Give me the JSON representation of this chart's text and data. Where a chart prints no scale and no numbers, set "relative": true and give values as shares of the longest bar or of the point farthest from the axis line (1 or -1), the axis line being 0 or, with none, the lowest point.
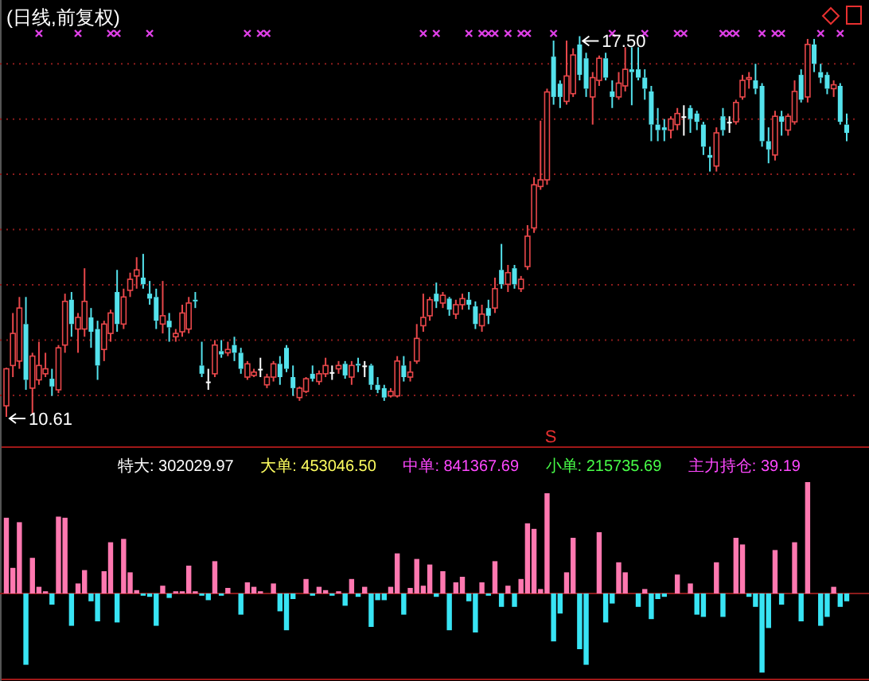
{
  "chart_data": [
    {
      "type": "candlestick",
      "title": "(日线,前复权)",
      "grid": "y",
      "categories": [
        null,
        null,
        null,
        null,
        null,
        null,
        null,
        null,
        null,
        null,
        null,
        null,
        null,
        null,
        null,
        null,
        null,
        null,
        null,
        null,
        null,
        null,
        null,
        null,
        null,
        null,
        null,
        null,
        null,
        null,
        null,
        null,
        null,
        null,
        null,
        null,
        null,
        null,
        null,
        null,
        null,
        null,
        null,
        null,
        null,
        null,
        null,
        null,
        null,
        null,
        null,
        null,
        null,
        null,
        null,
        null,
        null,
        null,
        null,
        null,
        null,
        null,
        null,
        null,
        null,
        null,
        null,
        null,
        null,
        null,
        null,
        null,
        null,
        null,
        null,
        null,
        null,
        null,
        null,
        null,
        null,
        null,
        null,
        null,
        null,
        null,
        null,
        null,
        null,
        null,
        null,
        null,
        null,
        null,
        null,
        null,
        null,
        null,
        null,
        null,
        null,
        null,
        null,
        null,
        null,
        null,
        null,
        null,
        null,
        null,
        null,
        null,
        null,
        null,
        null,
        null,
        null,
        null,
        null,
        null,
        null,
        null,
        null,
        null,
        null,
        null,
        null,
        null,
        null,
        null
      ],
      "yticks": [
        {
          "value": 11,
          "label": null
        },
        {
          "value": 12,
          "label": null
        },
        {
          "value": 13,
          "label": null
        },
        {
          "value": 14,
          "label": null
        },
        {
          "value": 15,
          "label": null
        },
        {
          "value": 16,
          "label": null
        },
        {
          "value": 17,
          "label": null
        }
      ],
      "ohlc": [
        [
          10.81,
          11.5,
          10.61,
          11.48
        ],
        [
          11.54,
          12.49,
          11.33,
          12.12
        ],
        [
          11.62,
          12.78,
          11.48,
          12.58
        ],
        [
          12.29,
          12.78,
          11.1,
          11.28
        ],
        [
          11.13,
          11.77,
          10.67,
          11.71
        ],
        [
          11.28,
          11.97,
          11.19,
          11.54
        ],
        [
          11.39,
          11.77,
          11.33,
          11.48
        ],
        [
          11.3,
          11.48,
          10.99,
          11.16
        ],
        [
          11.1,
          11.91,
          11.04,
          11.86
        ],
        [
          11.91,
          12.84,
          11.77,
          12.7
        ],
        [
          12.73,
          12.87,
          12.06,
          12.29
        ],
        [
          12.2,
          12.49,
          11.77,
          12.41
        ],
        [
          12.2,
          13.3,
          12.06,
          12.7
        ],
        [
          12.41,
          12.58,
          11.86,
          12.15
        ],
        [
          12.2,
          12.35,
          11.28,
          11.54
        ],
        [
          11.83,
          12.35,
          11.62,
          12.29
        ],
        [
          12.12,
          12.55,
          11.97,
          12.49
        ],
        [
          12.87,
          13.27,
          12.15,
          12.29
        ],
        [
          12.29,
          12.93,
          12.2,
          12.78
        ],
        [
          12.9,
          13.22,
          12.78,
          13.1
        ],
        [
          13.16,
          13.5,
          12.93,
          13.27
        ],
        [
          13.13,
          13.56,
          12.93,
          13.01
        ],
        [
          12.84,
          13.07,
          12.64,
          12.75
        ],
        [
          12.78,
          12.93,
          12.2,
          12.35
        ],
        [
          12.29,
          13.07,
          12.12,
          12.44
        ],
        [
          12.35,
          12.49,
          11.97,
          12.23
        ],
        [
          12.06,
          12.2,
          11.97,
          12.12
        ],
        [
          12.15,
          12.64,
          12.06,
          12.49
        ],
        [
          12.2,
          12.78,
          12.12,
          12.67
        ],
        [
          12.73,
          12.87,
          12.58,
          12.7
        ],
        [
          11.54,
          11.97,
          11.33,
          11.39
        ],
        [
          11.25,
          11.48,
          11.1,
          11.25
        ],
        [
          11.39,
          12.0,
          11.33,
          11.91
        ],
        [
          11.8,
          12.0,
          11.68,
          11.74
        ],
        [
          11.77,
          11.97,
          11.71,
          11.83
        ],
        [
          11.91,
          12.06,
          11.62,
          11.77
        ],
        [
          11.77,
          11.86,
          11.39,
          11.48
        ],
        [
          11.33,
          11.62,
          11.28,
          11.57
        ],
        [
          11.36,
          11.48,
          11.33,
          11.42
        ],
        [
          11.48,
          11.68,
          11.33,
          11.48
        ],
        [
          11.19,
          11.39,
          11.13,
          11.33
        ],
        [
          11.33,
          11.62,
          11.25,
          11.57
        ],
        [
          11.57,
          11.71,
          11.19,
          11.33
        ],
        [
          11.86,
          11.91,
          11.42,
          11.48
        ],
        [
          11.33,
          11.54,
          10.99,
          11.13
        ],
        [
          10.96,
          11.16,
          10.9,
          11.13
        ],
        [
          11.07,
          11.33,
          11.04,
          11.3
        ],
        [
          11.39,
          11.54,
          11.25,
          11.3
        ],
        [
          11.25,
          11.45,
          11.19,
          11.39
        ],
        [
          11.39,
          11.68,
          11.33,
          11.54
        ],
        [
          11.42,
          11.54,
          11.28,
          11.42
        ],
        [
          11.48,
          11.62,
          11.39,
          11.54
        ],
        [
          11.57,
          11.62,
          11.3,
          11.36
        ],
        [
          11.33,
          11.62,
          11.19,
          11.54
        ],
        [
          11.57,
          11.68,
          11.42,
          11.54
        ],
        [
          11.54,
          11.62,
          11.33,
          11.54
        ],
        [
          11.54,
          11.57,
          11.1,
          11.19
        ],
        [
          11.19,
          11.33,
          11.04,
          11.1
        ],
        [
          11.13,
          11.19,
          10.9,
          10.96
        ],
        [
          10.99,
          11.13,
          10.96,
          11.07
        ],
        [
          10.99,
          11.71,
          10.96,
          11.62
        ],
        [
          11.54,
          11.71,
          11.25,
          11.33
        ],
        [
          11.33,
          11.62,
          11.25,
          11.42
        ],
        [
          11.62,
          12.29,
          11.57,
          12.03
        ],
        [
          12.26,
          12.84,
          12.15,
          12.41
        ],
        [
          12.44,
          12.78,
          12.35,
          12.73
        ],
        [
          12.84,
          13.04,
          12.58,
          12.7
        ],
        [
          12.67,
          12.87,
          12.58,
          12.81
        ],
        [
          12.75,
          12.78,
          12.44,
          12.55
        ],
        [
          12.47,
          12.73,
          12.38,
          12.64
        ],
        [
          12.64,
          12.84,
          12.55,
          12.75
        ],
        [
          12.73,
          12.87,
          12.55,
          12.64
        ],
        [
          12.61,
          12.7,
          12.2,
          12.29
        ],
        [
          12.26,
          12.64,
          12.15,
          12.47
        ],
        [
          12.58,
          12.73,
          12.29,
          12.44
        ],
        [
          12.58,
          13.13,
          12.49,
          12.93
        ],
        [
          13.27,
          13.74,
          12.93,
          13.01
        ],
        [
          13.01,
          13.36,
          12.87,
          13.22
        ],
        [
          13.3,
          13.36,
          12.93,
          13.01
        ],
        [
          12.93,
          13.16,
          12.87,
          13.1
        ],
        [
          13.33,
          14.08,
          13.27,
          13.88
        ],
        [
          14.03,
          14.95,
          13.94,
          14.81
        ],
        [
          14.78,
          15.97,
          14.72,
          14.9
        ],
        [
          14.9,
          16.55,
          14.81,
          16.49
        ],
        [
          17.13,
          17.42,
          16.26,
          16.4
        ],
        [
          16.64,
          16.7,
          16.2,
          16.4
        ],
        [
          16.32,
          17.42,
          16.26,
          16.78
        ],
        [
          16.46,
          17.28,
          16.4,
          17.16
        ],
        [
          17.35,
          17.5,
          16.7,
          16.8
        ],
        [
          17.1,
          17.2,
          16.4,
          16.55
        ],
        [
          16.4,
          16.85,
          15.9,
          16.75
        ],
        [
          16.7,
          17.15,
          16.6,
          17.1
        ],
        [
          17.1,
          17.2,
          16.7,
          16.75
        ],
        [
          16.5,
          16.7,
          16.2,
          16.4
        ],
        [
          16.4,
          16.85,
          16.35,
          16.65
        ],
        [
          16.6,
          17.3,
          16.5,
          16.9
        ],
        [
          16.9,
          17.3,
          16.25,
          16.85
        ],
        [
          16.9,
          17.3,
          16.7,
          16.75
        ],
        [
          16.75,
          16.9,
          16.35,
          16.55
        ],
        [
          16.5,
          16.6,
          15.6,
          15.9
        ],
        [
          15.9,
          16.2,
          15.6,
          15.8
        ],
        [
          15.85,
          16.0,
          15.6,
          15.8
        ],
        [
          15.8,
          16.05,
          15.65,
          16.0
        ],
        [
          15.9,
          16.2,
          15.8,
          16.1
        ],
        [
          16.05,
          16.25,
          15.7,
          16.05
        ],
        [
          16.2,
          16.25,
          15.75,
          16.0
        ],
        [
          16.1,
          16.15,
          15.8,
          15.95
        ],
        [
          15.9,
          15.95,
          15.35,
          15.5
        ],
        [
          15.35,
          15.5,
          15.05,
          15.3
        ],
        [
          15.15,
          15.85,
          15.05,
          15.75
        ],
        [
          16.05,
          16.2,
          15.7,
          15.8
        ],
        [
          15.95,
          16.05,
          15.75,
          15.95
        ],
        [
          15.95,
          16.35,
          15.9,
          16.3
        ],
        [
          16.4,
          16.8,
          16.35,
          16.7
        ],
        [
          16.72,
          16.85,
          16.55,
          16.75
        ],
        [
          16.7,
          17.0,
          16.45,
          16.55
        ],
        [
          16.6,
          16.65,
          15.5,
          15.6
        ],
        [
          15.6,
          15.85,
          15.2,
          15.45
        ],
        [
          15.35,
          16.15,
          15.25,
          16.05
        ],
        [
          16.05,
          16.15,
          15.7,
          15.95
        ],
        [
          15.8,
          16.1,
          15.7,
          16.05
        ],
        [
          15.95,
          16.7,
          15.9,
          16.5
        ],
        [
          16.8,
          16.9,
          16.3,
          16.35
        ],
        [
          16.4,
          17.45,
          16.3,
          17.35
        ],
        [
          17.35,
          17.45,
          16.85,
          17.0
        ],
        [
          16.85,
          17.0,
          16.65,
          16.75
        ],
        [
          16.8,
          16.85,
          16.45,
          16.55
        ],
        [
          16.55,
          16.7,
          16.4,
          16.62
        ],
        [
          16.6,
          16.65,
          15.9,
          15.95
        ],
        [
          15.9,
          16.1,
          15.6,
          15.75
        ]
      ],
      "series": [
        {
          "type": "scatter",
          "color": "#e040e8",
          "marker": "cross",
          "values": [
            null,
            null,
            null,
            null,
            null,
            17.55,
            null,
            null,
            null,
            null,
            null,
            17.55,
            null,
            null,
            null,
            null,
            17.55,
            17.55,
            null,
            null,
            null,
            null,
            17.55,
            null,
            null,
            null,
            null,
            null,
            null,
            null,
            null,
            null,
            null,
            null,
            null,
            null,
            null,
            17.55,
            null,
            17.55,
            17.55,
            null,
            null,
            null,
            null,
            null,
            null,
            null,
            null,
            null,
            null,
            null,
            null,
            null,
            null,
            null,
            null,
            null,
            null,
            null,
            null,
            null,
            null,
            null,
            17.55,
            null,
            17.55,
            null,
            null,
            null,
            null,
            17.55,
            null,
            17.55,
            17.55,
            17.55,
            null,
            17.55,
            null,
            17.55,
            17.55,
            null,
            null,
            null,
            17.55,
            null,
            null,
            null,
            null,
            null,
            null,
            null,
            null,
            17.55,
            null,
            null,
            null,
            null,
            17.55,
            null,
            null,
            null,
            null,
            17.55,
            17.55,
            null,
            null,
            null,
            null,
            null,
            17.55,
            17.55,
            17.55,
            null,
            null,
            null,
            17.55,
            null,
            17.55,
            17.55,
            null,
            null,
            null,
            null,
            null,
            17.55,
            null,
            null,
            17.55,
            null
          ]
        }
      ],
      "annotations": [
        "17.50",
        "10.61",
        "S"
      ]
    },
    {
      "type": "bar",
      "relative": true,
      "stacked": true,
      "ref_lines": [
        {
          "axis": "y",
          "value": 0,
          "color": "#8c1c1c"
        }
      ],
      "categories": [
        null,
        null,
        null,
        null,
        null,
        null,
        null,
        null,
        null,
        null,
        null,
        null,
        null,
        null,
        null,
        null,
        null,
        null,
        null,
        null,
        null,
        null,
        null,
        null,
        null,
        null,
        null,
        null,
        null,
        null,
        null,
        null,
        null,
        null,
        null,
        null,
        null,
        null,
        null,
        null,
        null,
        null,
        null,
        null,
        null,
        null,
        null,
        null,
        null,
        null,
        null,
        null,
        null,
        null,
        null,
        null,
        null,
        null,
        null,
        null,
        null,
        null,
        null,
        null,
        null,
        null,
        null,
        null,
        null,
        null,
        null,
        null,
        null,
        null,
        null,
        null,
        null,
        null,
        null,
        null,
        null,
        null,
        null,
        null,
        null,
        null,
        null,
        null,
        null,
        null,
        null,
        null,
        null,
        null,
        null,
        null,
        null,
        null,
        null,
        null,
        null,
        null,
        null,
        null,
        null,
        null,
        null,
        null,
        null,
        null,
        null,
        null,
        null,
        null,
        null,
        null,
        null,
        null,
        null,
        null,
        null,
        null,
        null,
        null,
        null,
        null,
        null,
        null,
        null,
        null
      ],
      "series": [
        {
          "color": "#ff78b0",
          "values": [
            0.68,
            0.23,
            0.64,
            null,
            0.32,
            0.06,
            0.02,
            null,
            0.69,
            0.68,
            null,
            0.09,
            0.21,
            null,
            null,
            0.2,
            0.46,
            null,
            0.49,
            0.19,
            0.03,
            null,
            null,
            null,
            0.07,
            null,
            0.02,
            0.02,
            0.25,
            0.02,
            null,
            null,
            0.29,
            null,
            0.05,
            null,
            null,
            0.1,
            0.06,
            0.02,
            null,
            0.09,
            null,
            null,
            null,
            null,
            0.13,
            null,
            0.06,
            0.03,
            null,
            0.02,
            null,
            0.13,
            null,
            0.06,
            null,
            null,
            null,
            0.06,
            0.36,
            null,
            0.05,
            0.31,
            0.07,
            0.26,
            null,
            0.2,
            null,
            0.1,
            0.15,
            null,
            null,
            0.1,
            null,
            0.29,
            null,
            0.07,
            null,
            0.13,
            0.63,
            0.58,
            0.04,
            0.9,
            null,
            null,
            0.19,
            0.5,
            null,
            null,
            null,
            0.55,
            null,
            null,
            0.28,
            0.19,
            null,
            null,
            0.04,
            null,
            null,
            null,
            null,
            0.17,
            null,
            0.09,
            null,
            null,
            null,
            0.28,
            null,
            null,
            0.5,
            0.44,
            null,
            null,
            null,
            null,
            0.39,
            null,
            null,
            0.46,
            null,
            1,
            null,
            null,
            null,
            0.06,
            null,
            null
          ]
        },
        {
          "color": "#38e4f4",
          "values": [
            null,
            null,
            null,
            -0.64,
            null,
            null,
            null,
            -0.1,
            null,
            null,
            -0.29,
            null,
            null,
            -0.07,
            -0.25,
            null,
            null,
            -0.26,
            null,
            null,
            null,
            -0.02,
            -0.03,
            -0.29,
            null,
            -0.04,
            null,
            null,
            null,
            null,
            -0.02,
            -0.06,
            null,
            -0.02,
            null,
            null,
            -0.19,
            null,
            null,
            null,
            null,
            null,
            -0.16,
            -0.33,
            -0.05,
            null,
            null,
            -0.02,
            null,
            null,
            -0.02,
            null,
            -0.11,
            null,
            -0.03,
            null,
            -0.3,
            -0.06,
            -0.06,
            null,
            null,
            -0.19,
            null,
            null,
            null,
            null,
            -0.03,
            null,
            -0.33,
            null,
            null,
            -0.07,
            -0.35,
            null,
            -0.02,
            null,
            -0.12,
            null,
            -0.12,
            null,
            null,
            null,
            null,
            null,
            -0.43,
            -0.18,
            null,
            null,
            -0.5,
            -0.64,
            null,
            null,
            -0.26,
            -0.09,
            null,
            null,
            null,
            -0.12,
            null,
            -0.23,
            -0.05,
            -0.03,
            null,
            null,
            null,
            null,
            -0.19,
            -0.21,
            null,
            null,
            -0.21,
            null,
            null,
            null,
            -0.03,
            -0.12,
            -0.71,
            -0.31,
            null,
            -0.1,
            null,
            null,
            -0.25,
            null,
            null,
            -0.29,
            -0.21,
            null,
            -0.12,
            -0.07
          ]
        }
      ],
      "annotations": [
        "特大: 302029.97",
        "大单: 453046.50",
        "中单: 841367.69",
        "小单: 215735.69",
        "主力持仓: 39.19"
      ]
    }
  ]
}
